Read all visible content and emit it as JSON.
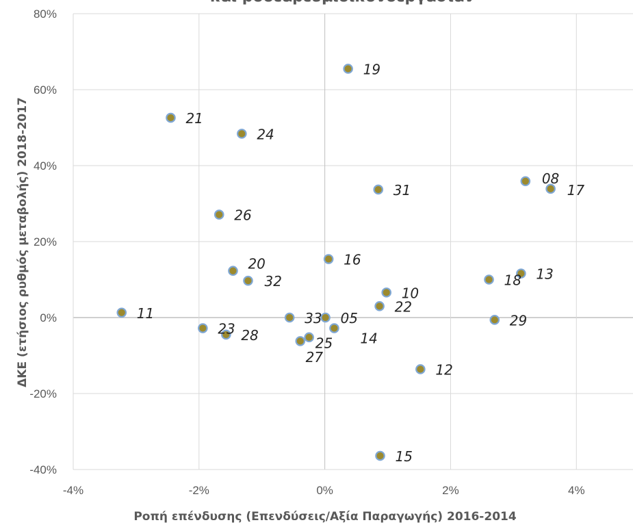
{
  "chart_data": {
    "type": "scatter",
    "title": "και ροοεαρευμιοικονοεργασιαν",
    "xlabel": "Ροπή επένδυσης (Επενδύσεις/Αξία Παραγωγής) 2016-2014",
    "ylabel": "ΔΚΕ (ετήσιος ρυθμός μεταβολής) 2018-2017",
    "xlim": [
      -0.04,
      0.049
    ],
    "ylim": [
      -0.4,
      0.8
    ],
    "x_ticks": [
      {
        "value": -0.04,
        "label": "-4%"
      },
      {
        "value": -0.02,
        "label": "-2%"
      },
      {
        "value": 0.0,
        "label": "0%"
      },
      {
        "value": 0.02,
        "label": "2%"
      },
      {
        "value": 0.04,
        "label": "4%"
      }
    ],
    "y_ticks": [
      {
        "value": -0.4,
        "label": "-40%"
      },
      {
        "value": -0.2,
        "label": "-20%"
      },
      {
        "value": 0.0,
        "label": "0%"
      },
      {
        "value": 0.2,
        "label": "20%"
      },
      {
        "value": 0.4,
        "label": "40%"
      },
      {
        "value": 0.6,
        "label": "60%"
      },
      {
        "value": 0.8,
        "label": "80%"
      }
    ],
    "grid": true,
    "marker_fill": "#9C8A2E",
    "marker_stroke": "#7FA7D4",
    "points": [
      {
        "label": "19",
        "x": 0.0037,
        "y": 0.655
      },
      {
        "label": "21",
        "x": -0.0245,
        "y": 0.526
      },
      {
        "label": "24",
        "x": -0.0132,
        "y": 0.484
      },
      {
        "label": "08",
        "x": 0.0319,
        "y": 0.359
      },
      {
        "label": "17",
        "x": 0.0359,
        "y": 0.339
      },
      {
        "label": "31",
        "x": 0.0085,
        "y": 0.337
      },
      {
        "label": "26",
        "x": -0.0168,
        "y": 0.271
      },
      {
        "label": "16",
        "x": 0.0006,
        "y": 0.154
      },
      {
        "label": "20",
        "x": -0.0146,
        "y": 0.123
      },
      {
        "label": "13",
        "x": 0.0312,
        "y": 0.116
      },
      {
        "label": "18",
        "x": 0.0261,
        "y": 0.1
      },
      {
        "label": "32",
        "x": -0.0122,
        "y": 0.097
      },
      {
        "label": "10",
        "x": 0.0098,
        "y": 0.066
      },
      {
        "label": "22",
        "x": 0.0087,
        "y": 0.03
      },
      {
        "label": "11",
        "x": -0.0323,
        "y": 0.013
      },
      {
        "label": "33",
        "x": -0.0056,
        "y": 0.0
      },
      {
        "label": "05",
        "x": 0.0001,
        "y": 0.0
      },
      {
        "label": "29",
        "x": 0.027,
        "y": -0.006
      },
      {
        "label": "23",
        "x": -0.0194,
        "y": -0.028
      },
      {
        "label": "14",
        "x": 0.0015,
        "y": -0.028
      },
      {
        "label": "28",
        "x": -0.0157,
        "y": -0.045
      },
      {
        "label": "27",
        "x": -0.0025,
        "y": -0.052
      },
      {
        "label": "25",
        "x": -0.0039,
        "y": -0.062
      },
      {
        "label": "12",
        "x": 0.0152,
        "y": -0.136
      },
      {
        "label": "15",
        "x": 0.0088,
        "y": -0.364
      }
    ]
  }
}
